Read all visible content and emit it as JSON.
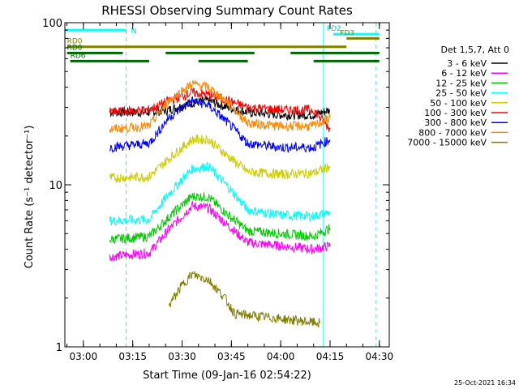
{
  "chart_data": {
    "type": "line",
    "title": "RHESSI Observing Summary Count Rates",
    "xlabel": "Start Time (09-Jan-16 02:54:22)",
    "ylabel": "Count Rate (s⁻¹ detector⁻¹)",
    "yscale": "log",
    "ylim": [
      1,
      100
    ],
    "xlim_minutes": [
      "02:54:22",
      "04:33:00"
    ],
    "x_ticks": [
      "03:00",
      "03:15",
      "03:30",
      "03:45",
      "04:00",
      "04:15",
      "04:30"
    ],
    "y_ticks": [
      "1",
      "10",
      "100"
    ],
    "legend_title": "Det 1,5,7, Att 0",
    "legend_position": "right",
    "series": [
      {
        "name": "3 - 6 keV",
        "color": "#000000",
        "x": [
          "03:08",
          "03:20",
          "03:26",
          "03:33",
          "03:38",
          "03:44",
          "03:50",
          "04:00",
          "04:10",
          "04:15"
        ],
        "y": [
          28,
          28,
          29,
          32,
          33,
          30,
          28,
          27,
          27,
          29
        ]
      },
      {
        "name": "6 - 12 keV",
        "color": "#ff00ff",
        "x": [
          "03:08",
          "03:20",
          "03:26",
          "03:33",
          "03:38",
          "03:44",
          "03:50",
          "04:00",
          "04:10",
          "04:15"
        ],
        "y": [
          3.6,
          3.8,
          5.3,
          7.4,
          7.2,
          5.6,
          4.4,
          4.2,
          4.0,
          4.2
        ]
      },
      {
        "name": "12 - 25 keV",
        "color": "#00cc00",
        "x": [
          "03:08",
          "03:20",
          "03:26",
          "03:33",
          "03:38",
          "03:44",
          "03:50",
          "04:00",
          "04:10",
          "04:15"
        ],
        "y": [
          4.6,
          4.8,
          6.3,
          8.5,
          8.4,
          6.5,
          5.2,
          5.0,
          4.8,
          5.4
        ]
      },
      {
        "name": "25 - 50 keV",
        "color": "#00ffff",
        "x": [
          "03:08",
          "03:20",
          "03:26",
          "03:33",
          "03:38",
          "03:44",
          "03:50",
          "04:00",
          "04:10",
          "04:15"
        ],
        "y": [
          6.0,
          6.1,
          8.8,
          12.5,
          13.0,
          9.7,
          7.0,
          6.5,
          6.4,
          6.8
        ]
      },
      {
        "name": "50 - 100 keV",
        "color": "#cccc00",
        "x": [
          "03:08",
          "03:20",
          "03:26",
          "03:33",
          "03:38",
          "03:44",
          "03:50",
          "04:00",
          "04:10",
          "04:15"
        ],
        "y": [
          11.0,
          11.2,
          14.5,
          19.0,
          19.0,
          15.0,
          12.0,
          11.6,
          11.8,
          13.0
        ]
      },
      {
        "name": "100 - 300 keV",
        "color": "#ff0000",
        "x": [
          "03:08",
          "03:20",
          "03:26",
          "03:33",
          "03:38",
          "03:44",
          "03:50",
          "04:00",
          "04:10",
          "04:15"
        ],
        "y": [
          28,
          29,
          33,
          37,
          36,
          33,
          30,
          29,
          29,
          22
        ]
      },
      {
        "name": "300 - 800 keV",
        "color": "#0000ff",
        "x": [
          "03:08",
          "03:20",
          "03:26",
          "03:33",
          "03:38",
          "03:44",
          "03:50",
          "04:00",
          "04:10",
          "04:15"
        ],
        "y": [
          17,
          18,
          26,
          33,
          31,
          24,
          18,
          17,
          17,
          19
        ]
      },
      {
        "name": "800 - 7000 keV",
        "color": "#ff8800",
        "x": [
          "03:08",
          "03:20",
          "03:26",
          "03:33",
          "03:38",
          "03:44",
          "03:50",
          "04:00",
          "04:10",
          "04:15"
        ],
        "y": [
          22,
          23,
          33,
          42,
          40,
          32,
          24,
          23,
          23,
          26
        ]
      },
      {
        "name": "7000 - 15000 keV",
        "color": "#808000",
        "x": [
          "03:26",
          "03:30",
          "03:33",
          "03:38",
          "03:43",
          "03:46",
          "04:12"
        ],
        "y": [
          1.8,
          2.4,
          2.8,
          2.6,
          2.0,
          1.6,
          1.4
        ]
      }
    ],
    "annotations": [
      {
        "label": "N",
        "color": "#00ffff",
        "segments": [
          [
            "02:54:22",
            "03:13"
          ]
        ],
        "y": 90
      },
      {
        "label": "FD2",
        "color": "#00ffff",
        "segments": [
          [
            "04:16",
            "04:30"
          ]
        ],
        "y": 85
      },
      {
        "label": "FD3",
        "color": "#808000",
        "segments": [
          [
            "04:20",
            "04:30"
          ]
        ],
        "y": 80
      },
      {
        "label": "RD0",
        "color": "#808000",
        "segments": [
          [
            "02:55",
            "04:20"
          ]
        ],
        "y": 71
      },
      {
        "label": "RD0",
        "color": "#006600",
        "segments": [
          [
            "02:55",
            "03:12"
          ],
          [
            "03:25",
            "03:52"
          ],
          [
            "04:03",
            "04:30"
          ]
        ],
        "y": 65
      },
      {
        "label": "RD6",
        "color": "#006600",
        "segments": [
          [
            "02:56",
            "03:20"
          ],
          [
            "03:35",
            "03:50"
          ],
          [
            "04:10",
            "04:30"
          ]
        ],
        "y": 58
      }
    ],
    "vertical_lines": [
      {
        "x": "03:13",
        "color": "#00ffff",
        "style": "dashed"
      },
      {
        "x": "04:13",
        "color": "#00ffff",
        "style": "solid"
      },
      {
        "x": "04:29",
        "color": "#00ffff",
        "style": "dashed"
      }
    ]
  },
  "footer": {
    "timestamp": "25-Oct-2021 16:34"
  }
}
